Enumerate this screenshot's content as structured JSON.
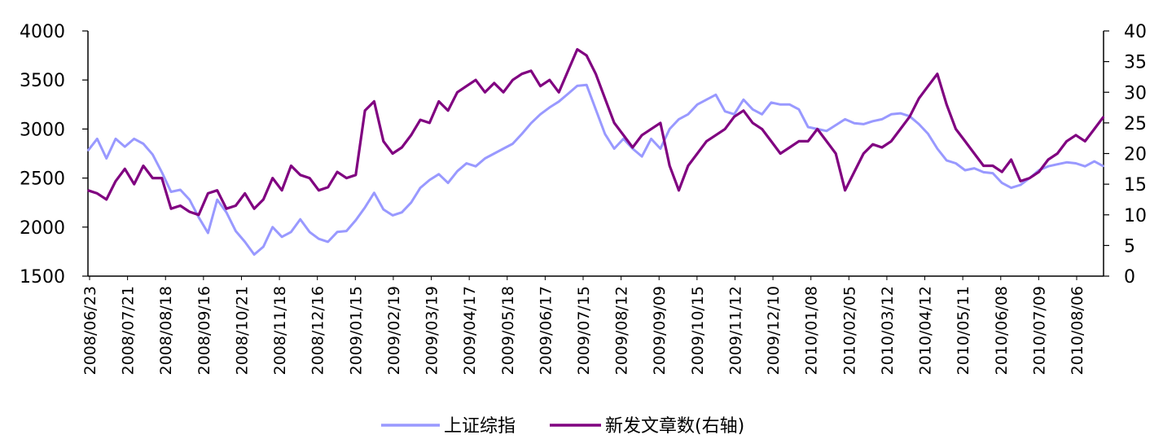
{
  "chart_data": {
    "type": "line",
    "title": "",
    "xlabel": "",
    "ylabel_left": "",
    "ylabel_right": "",
    "y_left_lim": [
      1500,
      4000
    ],
    "y_left_ticks": [
      "1500",
      "2000",
      "2500",
      "3000",
      "3500",
      "4000"
    ],
    "y_right_lim": [
      0,
      40
    ],
    "y_right_ticks": [
      "0",
      "5",
      "10",
      "15",
      "20",
      "25",
      "30",
      "35",
      "40"
    ],
    "x_tick_labels": [
      "2008/06/23",
      "2008/07/21",
      "2008/08/18",
      "2008/09/16",
      "2008/10/21",
      "2008/11/18",
      "2008/12/16",
      "2009/01/15",
      "2009/02/19",
      "2009/03/19",
      "2009/04/17",
      "2009/05/18",
      "2009/06/17",
      "2009/07/15",
      "2009/08/12",
      "2009/09/09",
      "2009/10/15",
      "2009/11/12",
      "2009/12/10",
      "2010/01/08",
      "2010/02/05",
      "2010/03/12",
      "2010/04/12",
      "2010/05/11",
      "2010/06/08",
      "2010/07/09",
      "2010/08/06"
    ],
    "legend_position": "bottom",
    "grid": false,
    "series": [
      {
        "name": "上证综指",
        "axis": "left",
        "color": "#9999ff",
        "values": [
          2780,
          2900,
          2700,
          2900,
          2820,
          2900,
          2850,
          2740,
          2560,
          2360,
          2380,
          2280,
          2100,
          1940,
          2280,
          2150,
          1960,
          1850,
          1720,
          1800,
          2000,
          1900,
          1950,
          2080,
          1950,
          1880,
          1850,
          1950,
          1960,
          2070,
          2200,
          2350,
          2180,
          2120,
          2150,
          2250,
          2400,
          2480,
          2540,
          2450,
          2570,
          2650,
          2620,
          2700,
          2750,
          2800,
          2850,
          2950,
          3060,
          3150,
          3220,
          3280,
          3360,
          3440,
          3450,
          3200,
          2950,
          2800,
          2900,
          2800,
          2720,
          2900,
          2800,
          3000,
          3100,
          3150,
          3250,
          3300,
          3350,
          3180,
          3150,
          3300,
          3200,
          3150,
          3270,
          3250,
          3250,
          3200,
          3020,
          3000,
          2980,
          3040,
          3100,
          3060,
          3050,
          3080,
          3100,
          3150,
          3160,
          3130,
          3050,
          2950,
          2800,
          2680,
          2650,
          2580,
          2600,
          2560,
          2550,
          2450,
          2400,
          2430,
          2500,
          2580,
          2620,
          2640,
          2660,
          2650,
          2620,
          2670,
          2620
        ]
      },
      {
        "name": "新发文章数(右轴)",
        "axis": "right",
        "color": "#800080",
        "values": [
          14,
          13.5,
          12.5,
          15.5,
          17.5,
          15,
          18,
          16,
          16,
          11,
          11.5,
          10.5,
          10,
          13.5,
          14,
          11,
          11.5,
          13.5,
          11,
          12.5,
          16,
          14,
          18,
          16.5,
          16,
          14,
          14.5,
          17,
          16,
          16.5,
          27,
          28.5,
          22,
          20,
          21,
          23,
          25.5,
          25,
          28.5,
          27,
          30,
          31,
          32,
          30,
          31.5,
          30,
          32,
          33,
          33.5,
          31,
          32,
          30,
          33.5,
          37,
          36,
          33,
          29,
          25,
          23,
          21,
          23,
          24,
          25,
          18,
          14,
          18,
          20,
          22,
          23,
          24,
          26,
          27,
          25,
          24,
          22,
          20,
          21,
          22,
          22,
          24,
          22,
          20,
          14,
          17,
          20,
          21.5,
          21,
          22,
          24,
          26,
          29,
          31,
          33,
          28,
          24,
          22,
          20,
          18,
          18,
          17,
          19,
          15.5,
          16,
          17,
          19,
          20,
          22,
          23,
          22,
          24,
          26
        ]
      }
    ]
  }
}
